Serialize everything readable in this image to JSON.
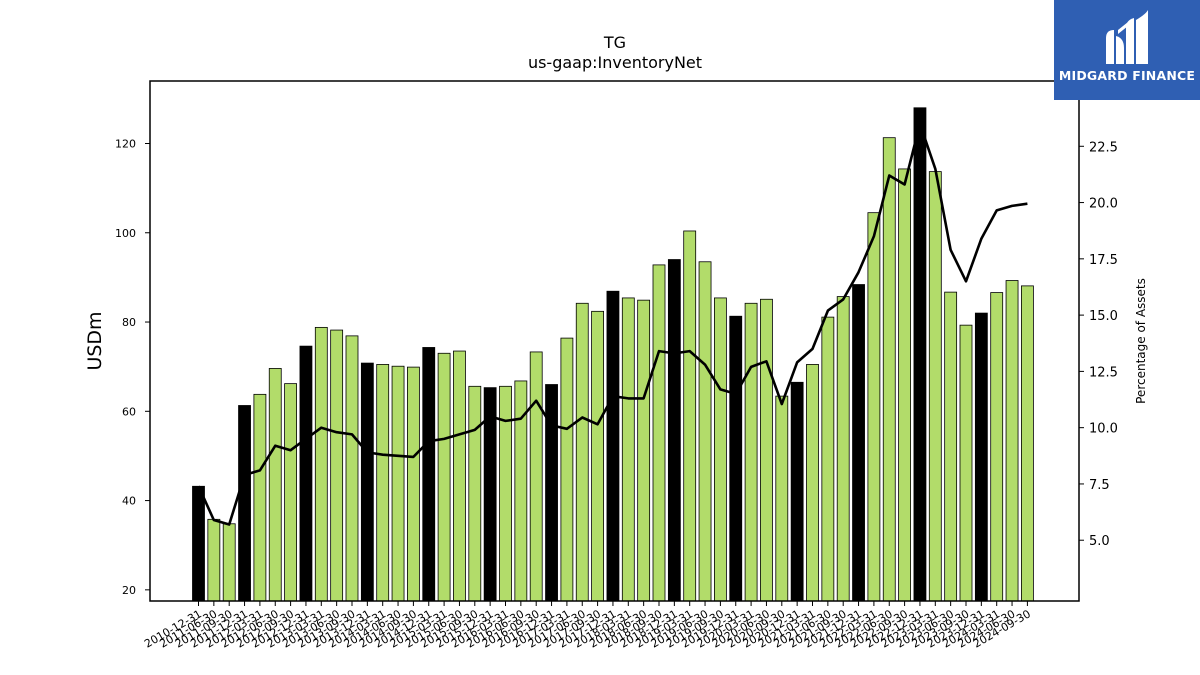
{
  "logo": {
    "text": "MIDGARD FINANCE",
    "color": "#2f5fb3"
  },
  "chart_data": {
    "type": "bar",
    "title": "TG",
    "subtitle": "us-gaap:InventoryNet",
    "ylabel": "USDm",
    "y2label": "Percentage of Assets",
    "ylim": [
      17.5,
      134
    ],
    "y2lim": [
      2.3,
      25.4
    ],
    "yticks": [
      20,
      40,
      60,
      80,
      100,
      120
    ],
    "y2ticks": [
      5.0,
      7.5,
      10.0,
      12.5,
      15.0,
      17.5,
      20.0,
      22.5
    ],
    "ytick_labels": [
      "20",
      "40",
      "60",
      "80",
      "100",
      "120"
    ],
    "y2tick_labels": [
      "5.0",
      "7.5",
      "10.0",
      "12.5",
      "15.0",
      "17.5",
      "20.0",
      "22.5"
    ],
    "colors": {
      "annual": "#000000",
      "quarterly": "#b2dc6a",
      "line": "#000000"
    },
    "categories": [
      "2010-12-31",
      "2011-06-30",
      "2011-09-30",
      "2011-12-31",
      "2012-03-31",
      "2012-06-30",
      "2012-09-30",
      "2012-12-31",
      "2013-03-31",
      "2013-06-30",
      "2013-09-30",
      "2013-12-31",
      "2014-03-31",
      "2014-06-30",
      "2014-09-30",
      "2014-12-31",
      "2015-03-31",
      "2015-06-30",
      "2015-09-30",
      "2015-12-31",
      "2016-03-31",
      "2016-06-30",
      "2016-09-30",
      "2016-12-31",
      "2017-03-31",
      "2017-06-30",
      "2017-09-30",
      "2017-12-31",
      "2018-03-31",
      "2018-06-30",
      "2018-09-30",
      "2018-12-31",
      "2019-03-31",
      "2019-06-30",
      "2019-09-30",
      "2019-12-31",
      "2020-03-31",
      "2020-06-30",
      "2020-09-30",
      "2020-12-31",
      "2021-03-31",
      "2021-06-30",
      "2021-09-30",
      "2021-12-31",
      "2022-03-31",
      "2022-06-30",
      "2022-09-30",
      "2022-12-31",
      "2023-03-31",
      "2023-06-30",
      "2023-09-30",
      "2023-12-31",
      "2024-03-31",
      "2024-06-30",
      "2024-09-30"
    ],
    "series": [
      {
        "values": [
          43.2,
          35.8,
          34.8,
          61.3,
          63.8,
          69.6,
          66.2,
          74.6,
          78.8,
          78.2,
          76.9,
          70.8,
          70.5,
          70.1,
          69.9,
          74.3,
          73.0,
          73.5,
          65.6,
          65.3,
          65.6,
          66.8,
          73.3,
          66.0,
          76.4,
          84.2,
          82.4,
          86.9,
          85.4,
          84.9,
          92.8,
          94.0,
          100.4,
          93.5,
          85.4,
          81.3,
          84.2,
          85.1,
          63.4,
          66.5,
          70.5,
          81.1,
          85.7,
          88.4,
          104.5,
          121.3,
          114.3,
          128.0,
          113.7,
          86.7,
          79.3,
          82.0,
          86.6,
          89.3,
          88.1
        ],
        "annual": [
          true,
          false,
          false,
          true,
          false,
          false,
          false,
          true,
          false,
          false,
          false,
          true,
          false,
          false,
          false,
          true,
          false,
          false,
          false,
          true,
          false,
          false,
          false,
          true,
          false,
          false,
          false,
          true,
          false,
          false,
          false,
          true,
          false,
          false,
          false,
          true,
          false,
          false,
          false,
          true,
          false,
          false,
          false,
          true,
          false,
          false,
          false,
          true,
          false,
          false,
          false,
          true,
          false,
          false,
          false
        ]
      },
      {
        "name": "Percentage of Assets",
        "values": [
          7.4,
          5.9,
          5.7,
          7.9,
          8.1,
          9.2,
          9.0,
          9.5,
          10.0,
          9.8,
          9.7,
          8.9,
          8.8,
          8.75,
          8.7,
          9.4,
          9.5,
          9.7,
          9.9,
          10.5,
          10.3,
          10.4,
          11.2,
          10.1,
          9.95,
          10.45,
          10.15,
          11.4,
          11.3,
          11.3,
          13.4,
          13.3,
          13.4,
          12.8,
          11.7,
          11.5,
          12.7,
          12.95,
          11.05,
          12.9,
          13.5,
          15.2,
          15.7,
          16.9,
          18.5,
          21.2,
          20.8,
          23.5,
          21.5,
          17.9,
          16.5,
          18.4,
          19.65,
          19.85,
          19.95
        ]
      }
    ]
  }
}
